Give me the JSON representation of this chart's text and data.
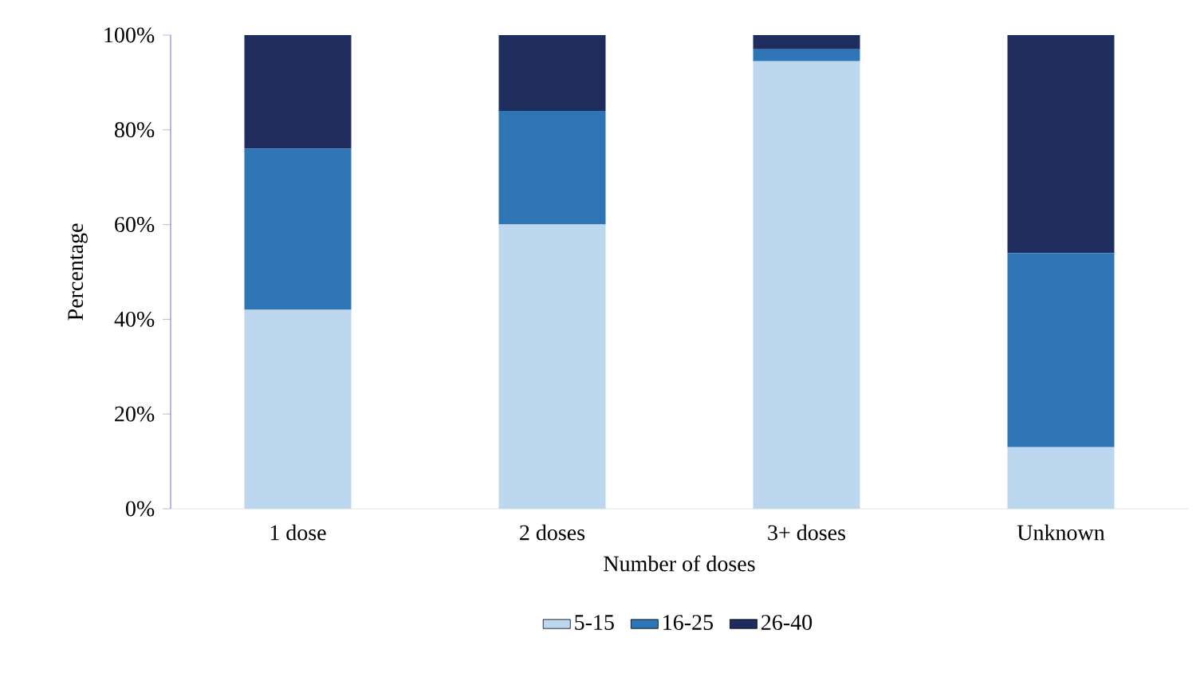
{
  "chart_data": {
    "type": "bar",
    "stacked": true,
    "xlabel": "Number of doses",
    "ylabel": "Percentage",
    "categories": [
      "1 dose",
      "2 doses",
      "3+ doses",
      "Unknown"
    ],
    "series": [
      {
        "name": "5-15",
        "color": "#bdd7ee",
        "values": [
          42,
          60,
          94.5,
          13
        ]
      },
      {
        "name": "16-25",
        "color": "#2e75b6",
        "values": [
          34,
          24,
          2.5,
          41
        ]
      },
      {
        "name": "26-40",
        "color": "#1f2d5e",
        "values": [
          24,
          16,
          3,
          46
        ]
      }
    ],
    "ylim": [
      0,
      100
    ],
    "yticks": [
      {
        "value": 0,
        "label": "0%"
      },
      {
        "value": 20,
        "label": "20%"
      },
      {
        "value": 40,
        "label": "40%"
      },
      {
        "value": 60,
        "label": "60%"
      },
      {
        "value": 80,
        "label": "80%"
      },
      {
        "value": 100,
        "label": "100%"
      }
    ],
    "legend": "bottom",
    "grid": false
  }
}
